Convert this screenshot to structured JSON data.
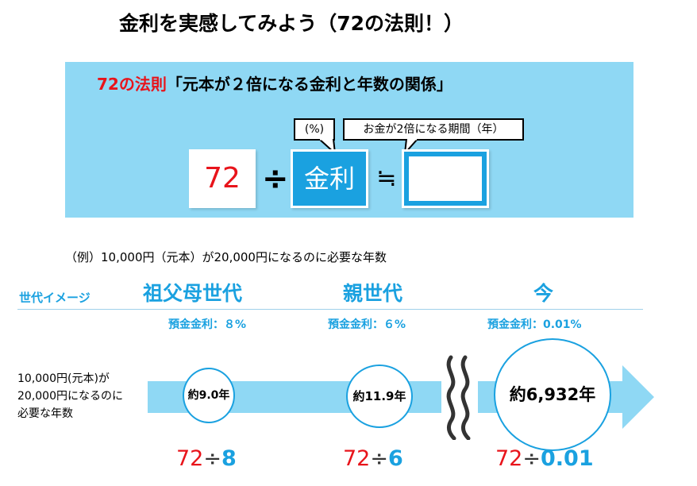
{
  "title": "金利を実感してみよう（72の法則！）",
  "formula": {
    "heading_red": "72の法則",
    "heading_black": "「元本が２倍になる金利と年数の関係」",
    "callout_percent": "(%)",
    "callout_period": "お金が2倍になる期間（年）",
    "numerator": "72",
    "divide": "÷",
    "rate_box": "金利",
    "approx": "≒"
  },
  "example": "（例）10,000円（元本）が20,000円になるのに必要な年数",
  "generations": {
    "label": "世代イメージ",
    "items": [
      {
        "name": "祖父母世代",
        "rate_label": "預金金利：８%",
        "years": "約9.0年",
        "calc_72": "72",
        "calc_op": "÷",
        "calc_rate": "8"
      },
      {
        "name": "親世代",
        "rate_label": "預金金利：６%",
        "years": "約11.9年",
        "calc_72": "72",
        "calc_op": "÷",
        "calc_rate": "6"
      },
      {
        "name": "今",
        "rate_label": "預金金利：0.01%",
        "years": "約6,932年",
        "calc_72": "72",
        "calc_op": "÷",
        "calc_rate": "0.01"
      }
    ]
  },
  "left_note": [
    "10,000円(元本)が",
    "20,000円になるのに",
    "必要な年数"
  ],
  "colors": {
    "accent": "#1aa1e0",
    "panel": "#8fd8f4",
    "red": "#e8141b",
    "arrow": "#8fd8f4"
  }
}
